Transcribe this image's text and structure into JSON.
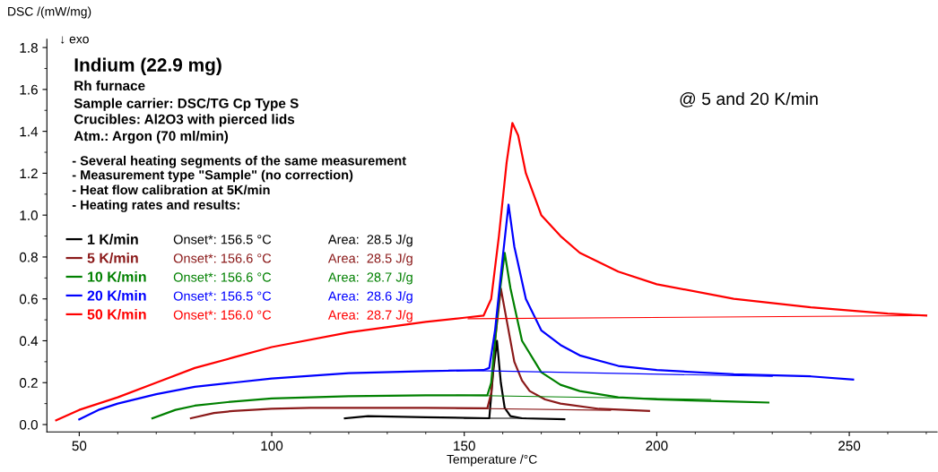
{
  "chart_data": {
    "type": "line",
    "title": "Indium (22.9 mg)",
    "subtitle": "@ 5 and 20 K/min",
    "xlabel": "Temperature /°C",
    "ylabel": "DSC /(mW/mg)",
    "annotations": [
      "Rh furnace",
      "Sample carrier: DSC/TG Cp Type S",
      "Crucibles: Al2O3 with pierced lids",
      "Atm.: Argon (70 ml/min)",
      "- Several heating segments of the same measurement",
      "- Measurement type \"Sample\" (no correction)",
      "- Heat flow calibration at 5K/min",
      "- Heating rates and results:",
      "↓ exo",
      "Onset*: 156.5 °C",
      "Area:  28.5 J/g",
      "Onset*: 156.6 °C",
      "Area:  28.5 J/g",
      "Onset*: 156.6 °C",
      "Area:  28.7 J/g",
      "Onset*: 156.5 °C",
      "Area:  28.6 J/g",
      "Onset*: 156.0 °C",
      "Area:  28.7 J/g"
    ],
    "series": [
      {
        "name": "1 K/min",
        "color": "#000000",
        "x": [
          119,
          125,
          140,
          156.5,
          157.5,
          158.5,
          159.5,
          160.5,
          162,
          165,
          176
        ],
        "values": [
          0.03,
          0.04,
          0.035,
          0.03,
          0.25,
          0.4,
          0.2,
          0.08,
          0.04,
          0.03,
          0.025
        ]
      },
      {
        "name": "5 K/min",
        "color": "#8b1a1a",
        "x": [
          79,
          85,
          90,
          100,
          110,
          140,
          156,
          157,
          158,
          159.5,
          161,
          163,
          165,
          167,
          171,
          175,
          185,
          198
        ],
        "values": [
          0.03,
          0.055,
          0.065,
          0.075,
          0.08,
          0.08,
          0.078,
          0.15,
          0.4,
          0.65,
          0.5,
          0.3,
          0.21,
          0.16,
          0.12,
          0.1,
          0.075,
          0.065
        ]
      },
      {
        "name": "10 K/min",
        "color": "#008000",
        "x": [
          69,
          75,
          80,
          90,
          100,
          120,
          140,
          156,
          157,
          159,
          160.5,
          162,
          165,
          170,
          175,
          180,
          190,
          200,
          220,
          229
        ],
        "values": [
          0.03,
          0.07,
          0.09,
          0.11,
          0.125,
          0.135,
          0.14,
          0.14,
          0.2,
          0.6,
          0.82,
          0.65,
          0.4,
          0.25,
          0.19,
          0.16,
          0.13,
          0.12,
          0.11,
          0.105
        ]
      },
      {
        "name": "20 K/min",
        "color": "#0000ff",
        "x": [
          50,
          55,
          60,
          70,
          80,
          90,
          100,
          120,
          140,
          155,
          156.5,
          158,
          160,
          161.5,
          163,
          166,
          170,
          175,
          180,
          190,
          200,
          220,
          240,
          251
        ],
        "values": [
          0.025,
          0.07,
          0.1,
          0.145,
          0.18,
          0.2,
          0.22,
          0.245,
          0.255,
          0.26,
          0.27,
          0.45,
          0.8,
          1.05,
          0.85,
          0.6,
          0.45,
          0.38,
          0.33,
          0.28,
          0.26,
          0.24,
          0.23,
          0.215
        ]
      },
      {
        "name": "50 K/min",
        "color": "#ff0000",
        "x": [
          44,
          50,
          60,
          70,
          80,
          90,
          100,
          120,
          140,
          150,
          155,
          157,
          159,
          161,
          162.5,
          164,
          166,
          170,
          175,
          180,
          190,
          200,
          220,
          240,
          260,
          270
        ],
        "values": [
          0.02,
          0.07,
          0.13,
          0.2,
          0.27,
          0.32,
          0.37,
          0.44,
          0.49,
          0.51,
          0.52,
          0.6,
          0.9,
          1.25,
          1.44,
          1.38,
          1.2,
          1.0,
          0.9,
          0.82,
          0.73,
          0.67,
          0.6,
          0.56,
          0.53,
          0.52
        ]
      },
      {
        "color": "#000000",
        "x": [
          150,
          166
        ],
        "values": [
          0.03,
          0.03
        ]
      },
      {
        "color": "#8b1a1a",
        "x": [
          148,
          188
        ],
        "values": [
          0.078,
          0.068
        ]
      },
      {
        "color": "#008000",
        "x": [
          148,
          214
        ],
        "values": [
          0.14,
          0.12
        ]
      },
      {
        "color": "#0000ff",
        "x": [
          146,
          230
        ],
        "values": [
          0.26,
          0.23
        ]
      },
      {
        "color": "#ff0000",
        "x": [
          151,
          270
        ],
        "values": [
          0.505,
          0.52
        ]
      }
    ],
    "xlim": [
      41.6,
      272.8
    ],
    "ylim": [
      -0.035,
      1.84
    ],
    "xticks": [
      50,
      100,
      150,
      200,
      250
    ],
    "yticks": [
      {
        "value": 0,
        "label": "0.0"
      },
      {
        "value": 0.2,
        "label": "0.2"
      },
      {
        "value": 0.4,
        "label": "0.4"
      },
      {
        "value": 0.6,
        "label": "0.6"
      },
      {
        "value": 0.8,
        "label": "0.8"
      },
      {
        "value": 1.0,
        "label": "1.0"
      },
      {
        "value": 1.2,
        "label": "1.2"
      },
      {
        "value": 1.4,
        "label": "1.4"
      },
      {
        "value": 1.6,
        "label": "1.6"
      },
      {
        "value": 1.8,
        "label": "1.8"
      }
    ],
    "grid": false,
    "legend": "left"
  }
}
